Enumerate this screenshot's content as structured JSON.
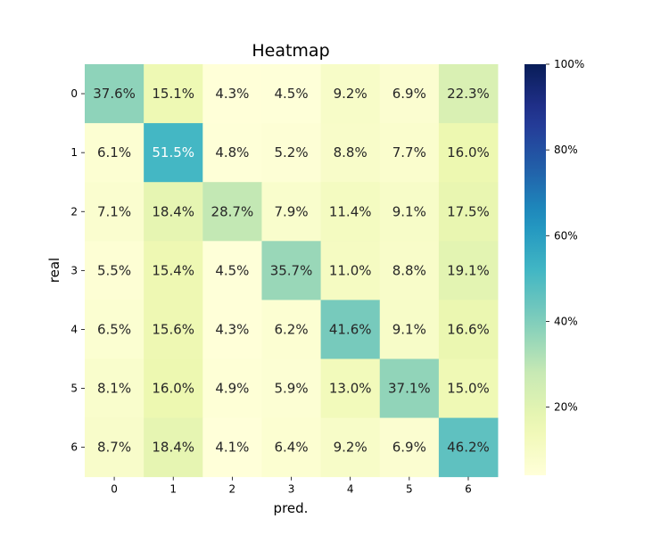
{
  "chart_data": {
    "type": "heatmap",
    "title": "Heatmap",
    "xlabel": "pred.",
    "ylabel": "real",
    "x_categories": [
      "0",
      "1",
      "2",
      "3",
      "4",
      "5",
      "6"
    ],
    "y_categories": [
      "0",
      "1",
      "2",
      "3",
      "4",
      "5",
      "6"
    ],
    "values": [
      [
        37.6,
        15.1,
        4.3,
        4.5,
        9.2,
        6.9,
        22.3
      ],
      [
        6.1,
        51.5,
        4.8,
        5.2,
        8.8,
        7.7,
        16.0
      ],
      [
        7.1,
        18.4,
        28.7,
        7.9,
        11.4,
        9.1,
        17.5
      ],
      [
        5.5,
        15.4,
        4.5,
        35.7,
        11.0,
        8.8,
        19.1
      ],
      [
        6.5,
        15.6,
        4.3,
        6.2,
        41.6,
        9.1,
        16.6
      ],
      [
        8.1,
        16.0,
        4.9,
        5.9,
        13.0,
        37.1,
        15.0
      ],
      [
        8.7,
        18.4,
        4.1,
        6.4,
        9.2,
        6.9,
        46.2
      ]
    ],
    "value_suffix": "%",
    "colormap": "YlGnBu",
    "colorbar": {
      "range": [
        4.1,
        100
      ],
      "ticks": [
        20,
        40,
        60,
        80,
        100
      ],
      "tick_labels": [
        "20%",
        "40%",
        "60%",
        "80%",
        "100%"
      ]
    }
  }
}
